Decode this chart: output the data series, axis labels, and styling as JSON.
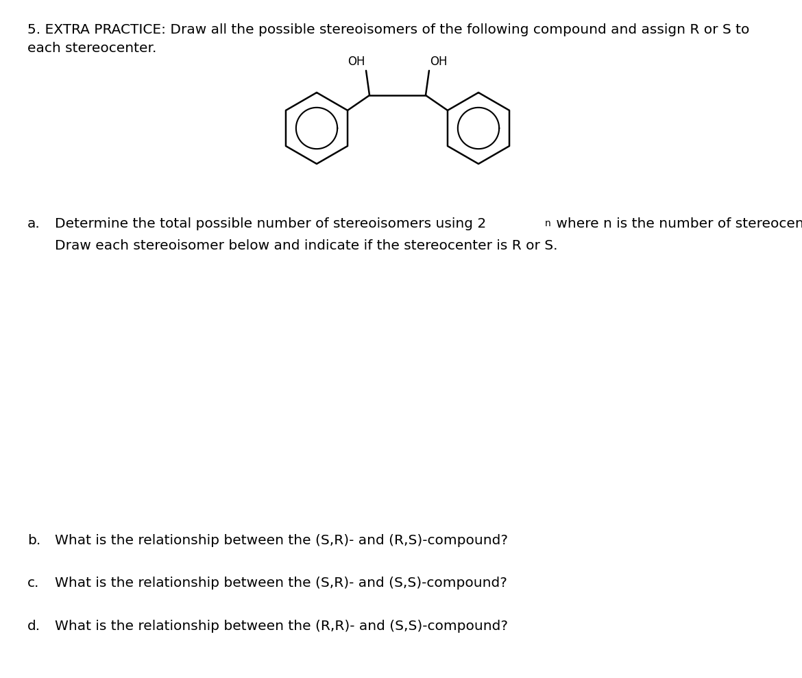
{
  "bg_color": "#ffffff",
  "text_color": "#000000",
  "title_line1": "5. EXTRA PRACTICE: Draw all the possible stereoisomers of the following compound and assign R or S to",
  "title_line2": "each stereocenter.",
  "part_a_before2": "Determine the total possible number of stereoisomers using 2",
  "part_a_after2": " where n is the number of stereocenters.",
  "part_a_line2": "Draw each stereoisomer below and indicate if the stereocenter is R or S.",
  "part_b": "What is the relationship between the (S,R)- and (R,S)-compound?",
  "part_c": "What is the relationship between the (S,R)- and (S,S)-compound?",
  "part_d": "What is the relationship between the (R,R)- and (S,S)-compound?",
  "font_size_main": 14.5,
  "figsize": [
    11.7,
    9.89
  ],
  "dpi": 100
}
